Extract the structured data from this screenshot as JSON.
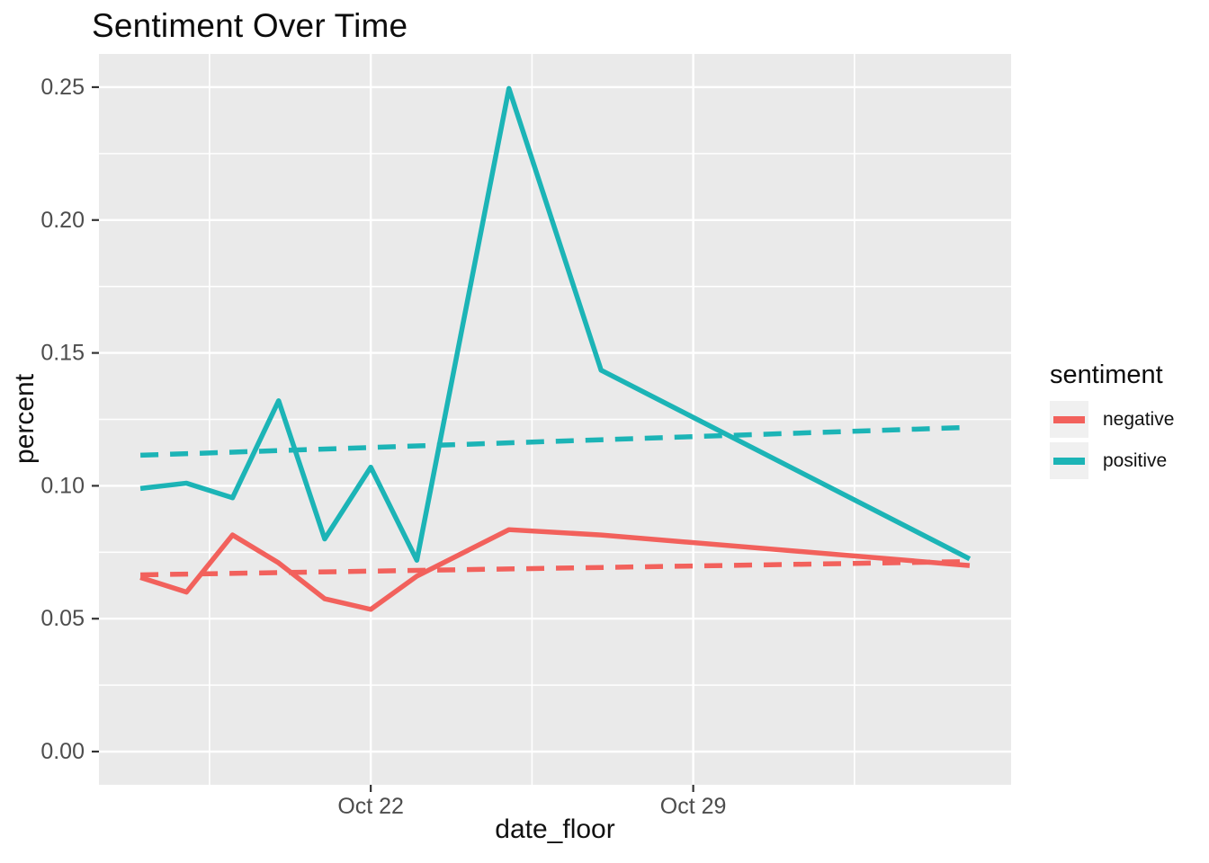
{
  "colors": {
    "negative": "#F2615C",
    "positive": "#1CB4B6",
    "panel_background": "#EAEAEA",
    "gridline": "#FFFFFF",
    "tick_mark": "#333333",
    "tick_label": "#4D4D4D",
    "text": "#111111",
    "legend_key_background": "#F0F0F0"
  },
  "chart_data": {
    "type": "line",
    "title": "Sentiment Over Time",
    "xlabel": "date_floor",
    "ylabel": "percent",
    "x_unit": "days since Oct 17",
    "xlim": [
      -0.9,
      18.9
    ],
    "ylim": [
      -0.0125,
      0.2625
    ],
    "grid": "on",
    "point_dates": [
      "Oct 17",
      "Oct 18",
      "Oct 19",
      "Oct 20",
      "Oct 21",
      "Oct 22",
      "Oct 23",
      "Oct 25",
      "Oct 27",
      "Nov 4"
    ],
    "series": [
      {
        "name": "negative",
        "style": "solid",
        "color": "#F2615C",
        "x": [
          0,
          1,
          2,
          3,
          4,
          5,
          6,
          8,
          10,
          18
        ],
        "values": [
          0.0655,
          0.06,
          0.0815,
          0.071,
          0.0575,
          0.0535,
          0.066,
          0.0835,
          0.0815,
          0.07
        ]
      },
      {
        "name": "positive",
        "style": "solid",
        "color": "#1CB4B6",
        "x": [
          0,
          1,
          2,
          3,
          4,
          5,
          6,
          8,
          10,
          18
        ],
        "values": [
          0.099,
          0.101,
          0.0955,
          0.132,
          0.08,
          0.107,
          0.072,
          0.2495,
          0.1435,
          0.0725
        ]
      },
      {
        "name": "negative-trend",
        "style": "dashed",
        "color": "#F2615C",
        "x": [
          0,
          18
        ],
        "values": [
          0.0665,
          0.0715
        ]
      },
      {
        "name": "positive-trend",
        "style": "dashed",
        "color": "#1CB4B6",
        "x": [
          0,
          18
        ],
        "values": [
          0.1115,
          0.122
        ]
      }
    ],
    "x_ticks": {
      "major": [
        {
          "x": 5,
          "label": "Oct 22"
        },
        {
          "x": 12,
          "label": "Oct 29"
        }
      ],
      "minor": [
        1.5,
        8.5,
        15.5
      ]
    },
    "y_ticks": {
      "major": [
        {
          "v": 0.0,
          "label": "0.00"
        },
        {
          "v": 0.05,
          "label": "0.05"
        },
        {
          "v": 0.1,
          "label": "0.10"
        },
        {
          "v": 0.15,
          "label": "0.15"
        },
        {
          "v": 0.2,
          "label": "0.20"
        },
        {
          "v": 0.25,
          "label": "0.25"
        }
      ],
      "minor": [
        0.025,
        0.075,
        0.125,
        0.175,
        0.225
      ]
    },
    "legend": {
      "title": "sentiment",
      "position": "right",
      "entries": [
        {
          "label": "negative",
          "color": "#F2615C"
        },
        {
          "label": "positive",
          "color": "#1CB4B6"
        }
      ]
    }
  }
}
